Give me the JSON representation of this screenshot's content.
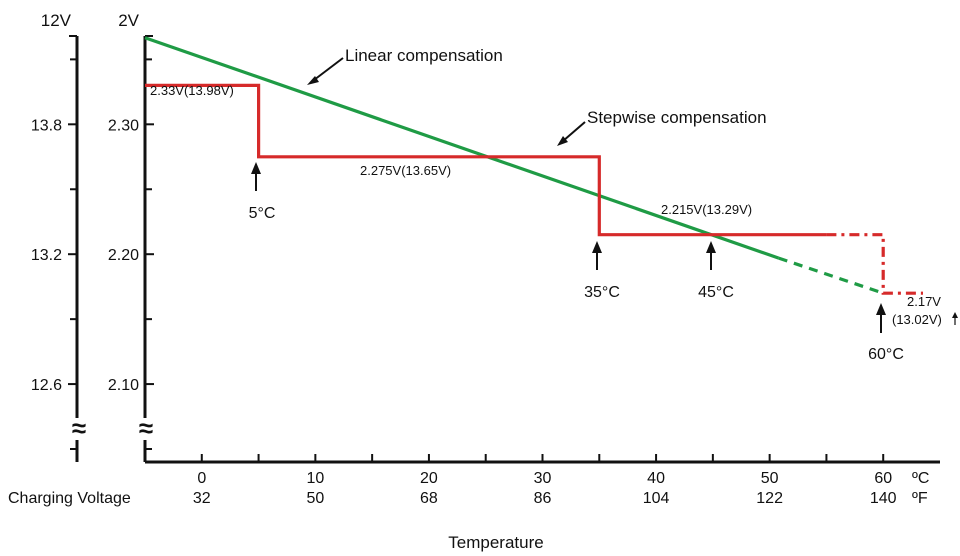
{
  "chart_data": {
    "type": "line",
    "title": "",
    "xlabel": "Temperature",
    "row_label": "Charging Voltage",
    "x_units": {
      "celsius": "ºC",
      "fahrenheit": "ºF"
    },
    "x_ticks_c": [
      "0",
      "10",
      "20",
      "30",
      "40",
      "50",
      "60"
    ],
    "x_ticks_f": [
      "32",
      "50",
      "68",
      "86",
      "104",
      "122",
      "140"
    ],
    "xlim_c": [
      -5,
      65
    ],
    "y_axis_12v": {
      "unit": "12V",
      "ticks": [
        "13.8",
        "13.2",
        "12.6"
      ],
      "break": "≈"
    },
    "y_axis_2v": {
      "unit": "2V",
      "ticks": [
        "2.30",
        "2.20",
        "2.10"
      ],
      "break": "≈"
    },
    "ylim_2v": [
      2.04,
      2.368
    ],
    "series": [
      {
        "name": "Linear compensation",
        "color": "#1f9b45",
        "points": [
          [
            -5,
            2.3667
          ],
          [
            50.8,
            2.197
          ]
        ],
        "extension": [
          [
            50.8,
            2.197
          ],
          [
            60,
            2.17
          ]
        ]
      },
      {
        "name": "Stepwise compensation",
        "color": "#d62a2a",
        "points": [
          [
            -5,
            2.33
          ],
          [
            5,
            2.33
          ],
          [
            5,
            2.275
          ],
          [
            35,
            2.275
          ],
          [
            35,
            2.215
          ],
          [
            55,
            2.215
          ]
        ],
        "extension": [
          [
            55,
            2.215
          ],
          [
            60,
            2.215
          ],
          [
            60,
            2.17
          ],
          [
            63.5,
            2.17
          ]
        ]
      }
    ],
    "annotations": {
      "linear_label": "Linear compensation",
      "stepwise_label": "Stepwise compensation",
      "level1": "2.33V(13.98V)",
      "level2": "2.275V(13.65V)",
      "level3": "2.215V(13.29V)",
      "level4_line1": "2.17V",
      "level4_line2": "(13.02V)",
      "t5": "5°C",
      "t35": "35°C",
      "t45": "45°C",
      "t60": "60°C"
    }
  }
}
